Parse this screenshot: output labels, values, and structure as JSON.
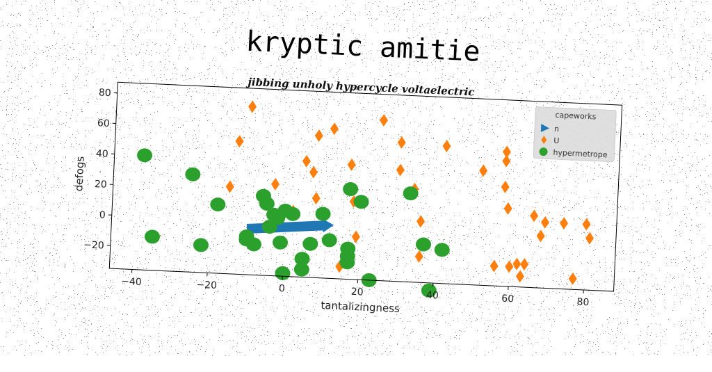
{
  "chart_data": {
    "type": "scatter",
    "title": "kryptic amitie",
    "subtitle": "jibbing unholy hypercycle voltaelectric",
    "xlabel": "tantalizingness",
    "ylabel": "defogs",
    "xlim": [
      -46,
      88
    ],
    "ylim": [
      -35,
      87
    ],
    "xticks": [
      -40,
      -20,
      0,
      20,
      40,
      60,
      80
    ],
    "yticks": [
      -20,
      0,
      20,
      40,
      60,
      80
    ],
    "grid": false,
    "legend": {
      "title": "capeworks",
      "placement": "top-right"
    },
    "series": [
      {
        "name": "n",
        "kind": "arrow",
        "color": "#1f77b4",
        "x": [
          -10,
          13
        ],
        "y": [
          -5,
          0
        ]
      },
      {
        "name": "U",
        "kind": "diamond",
        "color": "#ff7f0e",
        "x": [
          -10,
          -13,
          -15,
          -3,
          2,
          5,
          7,
          8,
          8,
          12,
          12,
          15,
          17,
          18,
          19,
          25,
          30,
          30,
          34,
          36,
          36,
          42,
          52,
          56,
          58,
          58,
          58,
          59,
          60,
          62,
          63,
          64,
          66,
          68,
          69,
          74,
          77,
          80,
          81
        ],
        "y": [
          75,
          52,
          22,
          25,
          8,
          41,
          34,
          58,
          17,
          63,
          -10,
          -27,
          40,
          16,
          -7,
          70,
          56,
          38,
          26,
          5,
          -18,
          55,
          40,
          -22,
          53,
          47,
          30,
          16,
          -22,
          -20,
          -28,
          -20,
          12,
          -1,
          8,
          8,
          -28,
          8,
          -1
        ]
      },
      {
        "name": "hypermetrope",
        "kind": "circle",
        "color": "#2ca02c",
        "x": [
          -38,
          -35,
          -25,
          -22,
          -18,
          -10,
          -10,
          -8,
          -6,
          -5,
          -4,
          -3,
          -2,
          -1,
          0,
          0,
          2,
          5,
          5,
          7,
          10,
          12,
          17,
          17,
          17,
          17,
          20,
          23,
          33,
          37,
          39,
          42
        ],
        "y": [
          40,
          -13,
          29,
          -17,
          10,
          -10,
          -12,
          -15,
          17,
          12,
          -3,
          5,
          3,
          -13,
          -33,
          8,
          6,
          -30,
          -23,
          -13,
          7,
          -10,
          24,
          -24,
          -15,
          -20,
          16,
          -35,
          23,
          -10,
          -40,
          -13
        ]
      }
    ]
  }
}
